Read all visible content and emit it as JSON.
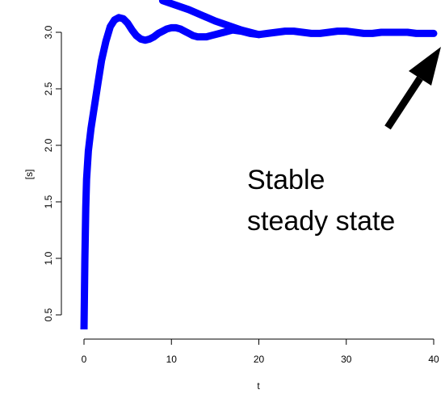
{
  "chart_data": {
    "type": "line",
    "title": "",
    "xlabel": "t",
    "ylabel": "[s]",
    "xlim": [
      -1.0,
      41.0
    ],
    "ylim": [
      0.3,
      3.25
    ],
    "xticks": [
      0,
      10,
      20,
      30,
      40
    ],
    "yticks": [
      0.5,
      1.0,
      1.5,
      2.0,
      2.5,
      3.0
    ],
    "xtick_labels": [
      "0",
      "10",
      "20",
      "30",
      "40"
    ],
    "ytick_labels": [
      "0.5",
      "1.0",
      "1.5",
      "2.0",
      "2.5",
      "3.0"
    ],
    "grid": false,
    "legend": "none",
    "series": [
      {
        "color": "#0000ff",
        "x": [
          0.0,
          0.1,
          0.2,
          0.3,
          0.5,
          0.8,
          1.2,
          1.6,
          2.0,
          2.5,
          3.0,
          3.5,
          4.0,
          4.5,
          5.0,
          5.5,
          6.0,
          6.5,
          7.0,
          7.5,
          8.0,
          8.5,
          9.0,
          9.5,
          10.0,
          10.5,
          11.0,
          11.5,
          12.0,
          12.5,
          13.0,
          13.5,
          14.0,
          14.5,
          15.0,
          16.0,
          17.0,
          18.0,
          19.0,
          20.0,
          21.0,
          22.0,
          23.0,
          24.0,
          25.0,
          26.0,
          27.0,
          28.0,
          29.0,
          30.0,
          31.0,
          32.0,
          33.0,
          34.0,
          35.0,
          36.0,
          37.0,
          38.0,
          39.0,
          40.0
        ],
        "y": [
          0.37,
          1.0,
          1.45,
          1.7,
          1.95,
          2.15,
          2.35,
          2.55,
          2.75,
          2.92,
          3.05,
          3.11,
          3.13,
          3.12,
          3.08,
          3.02,
          2.97,
          2.94,
          2.93,
          2.94,
          2.96,
          2.99,
          3.01,
          3.03,
          3.04,
          3.04,
          3.03,
          3.01,
          2.99,
          2.97,
          2.96,
          2.96,
          2.96,
          2.97,
          2.98,
          3.0,
          3.02,
          3.01,
          2.99,
          2.98,
          2.99,
          3.0,
          3.01,
          3.01,
          3.0,
          2.99,
          2.99,
          3.0,
          3.01,
          3.01,
          3.0,
          2.99,
          2.99,
          3.0,
          3.0,
          3.0,
          3.0,
          2.99,
          2.99,
          2.99
        ]
      },
      {
        "color": "#0000ff",
        "x": [
          9.0,
          12.0,
          15.0,
          18.0,
          20.0
        ],
        "y": [
          3.28,
          3.2,
          3.1,
          3.02,
          2.98
        ]
      }
    ],
    "annotations": [
      {
        "lines": [
          "Stable",
          "steady state"
        ],
        "arrow": true,
        "color": "#000000"
      }
    ]
  }
}
